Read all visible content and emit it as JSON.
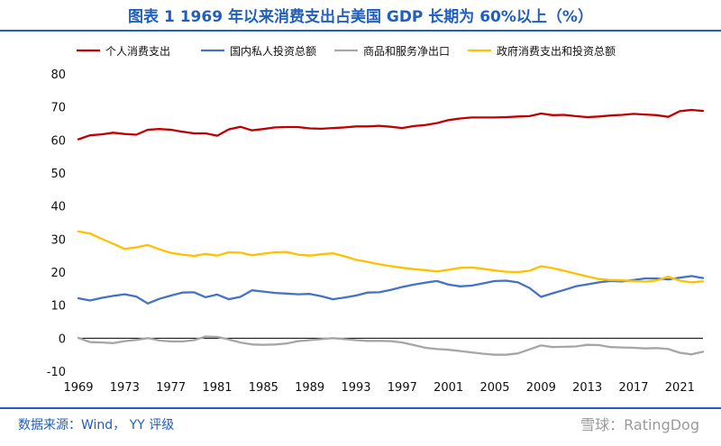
{
  "title": "图表 1 1969 年以来消费支出占美国 GDP 长期为 60%以上（%）",
  "source": "数据来源：Wind， YY 评级",
  "watermark": "雪球：RatingDog",
  "colors": {
    "title": "#1f5fbf",
    "personal": "#c00000",
    "private": "#4472c4",
    "netexports": "#a6a6a6",
    "government": "#ffc000",
    "zero_line": "#000000"
  },
  "chart_data": {
    "type": "line",
    "title": "图表 1 1969 年以来消费支出占美国 GDP 长期为 60%以上（%）",
    "xlabel": "",
    "ylabel": "",
    "ylim": [
      -10,
      80
    ],
    "yticks": [
      80,
      70,
      60,
      50,
      40,
      30,
      20,
      10,
      0,
      -10
    ],
    "xticks": [
      1969,
      1973,
      1977,
      1981,
      1985,
      1989,
      1993,
      1997,
      2001,
      2005,
      2009,
      2013,
      2017,
      2021
    ],
    "legend_position": "top",
    "grid": false,
    "x": [
      1969,
      1970,
      1971,
      1972,
      1973,
      1974,
      1975,
      1976,
      1977,
      1978,
      1979,
      1980,
      1981,
      1982,
      1983,
      1984,
      1985,
      1986,
      1987,
      1988,
      1989,
      1990,
      1991,
      1992,
      1993,
      1994,
      1995,
      1996,
      1997,
      1998,
      1999,
      2000,
      2001,
      2002,
      2003,
      2004,
      2005,
      2006,
      2007,
      2008,
      2009,
      2010,
      2011,
      2012,
      2013,
      2014,
      2015,
      2016,
      2017,
      2018,
      2019,
      2020,
      2021,
      2022,
      2023
    ],
    "series": [
      {
        "name": "个人消费支出",
        "color_key": "personal",
        "values": [
          60.2,
          61.4,
          61.7,
          62.2,
          61.8,
          61.6,
          63.1,
          63.3,
          63.1,
          62.5,
          62.0,
          62.0,
          61.3,
          63.2,
          64.0,
          62.9,
          63.3,
          63.8,
          63.9,
          63.9,
          63.5,
          63.4,
          63.6,
          63.8,
          64.1,
          64.1,
          64.3,
          64.0,
          63.6,
          64.2,
          64.5,
          65.1,
          66.0,
          66.5,
          66.8,
          66.8,
          66.8,
          66.9,
          67.1,
          67.2,
          68.0,
          67.5,
          67.6,
          67.2,
          66.9,
          67.1,
          67.4,
          67.6,
          67.9,
          67.7,
          67.5,
          67.0,
          68.7,
          69.1,
          68.8
        ]
      },
      {
        "name": "国内私人投资总额",
        "color_key": "private",
        "values": [
          12.1,
          11.4,
          12.2,
          12.8,
          13.3,
          12.6,
          10.5,
          11.9,
          12.9,
          13.8,
          13.9,
          12.4,
          13.2,
          11.8,
          12.5,
          14.5,
          14.1,
          13.7,
          13.5,
          13.3,
          13.4,
          12.7,
          11.8,
          12.3,
          12.9,
          13.8,
          13.9,
          14.6,
          15.5,
          16.2,
          16.8,
          17.3,
          16.2,
          15.7,
          15.9,
          16.6,
          17.3,
          17.4,
          16.9,
          15.2,
          12.5,
          13.6,
          14.6,
          15.7,
          16.3,
          16.9,
          17.3,
          17.2,
          17.6,
          18.1,
          18.1,
          17.8,
          18.3,
          18.8,
          18.2
        ]
      },
      {
        "name": "商品和服务净出口",
        "color_key": "netexports",
        "values": [
          0.1,
          -1.2,
          -1.3,
          -1.5,
          -0.9,
          -0.5,
          0.0,
          -0.7,
          -1.0,
          -1.0,
          -0.6,
          0.5,
          0.4,
          -0.4,
          -1.3,
          -1.9,
          -2.0,
          -1.9,
          -1.6,
          -0.9,
          -0.6,
          -0.3,
          0.0,
          -0.3,
          -0.6,
          -0.8,
          -0.8,
          -0.9,
          -1.3,
          -2.1,
          -2.9,
          -3.3,
          -3.5,
          -3.9,
          -4.3,
          -4.7,
          -5.0,
          -5.0,
          -4.6,
          -3.4,
          -2.2,
          -2.7,
          -2.6,
          -2.5,
          -2.0,
          -2.1,
          -2.7,
          -2.8,
          -2.9,
          -3.1,
          -3.0,
          -3.3,
          -4.4,
          -4.9,
          -4.1
        ]
      },
      {
        "name": "政府消费支出和投资总额",
        "color_key": "government",
        "values": [
          32.3,
          31.7,
          30.1,
          28.6,
          27.0,
          27.5,
          28.2,
          26.9,
          25.8,
          25.3,
          24.9,
          25.5,
          25.0,
          26.0,
          25.9,
          25.1,
          25.6,
          26.0,
          26.1,
          25.3,
          25.0,
          25.4,
          25.7,
          24.8,
          23.7,
          23.1,
          22.4,
          21.8,
          21.3,
          20.9,
          20.6,
          20.2,
          20.7,
          21.3,
          21.4,
          21.0,
          20.5,
          20.1,
          20.0,
          20.4,
          21.8,
          21.2,
          20.4,
          19.5,
          18.7,
          17.9,
          17.6,
          17.5,
          17.3,
          17.1,
          17.5,
          18.6,
          17.4,
          16.9,
          17.2
        ]
      }
    ]
  }
}
